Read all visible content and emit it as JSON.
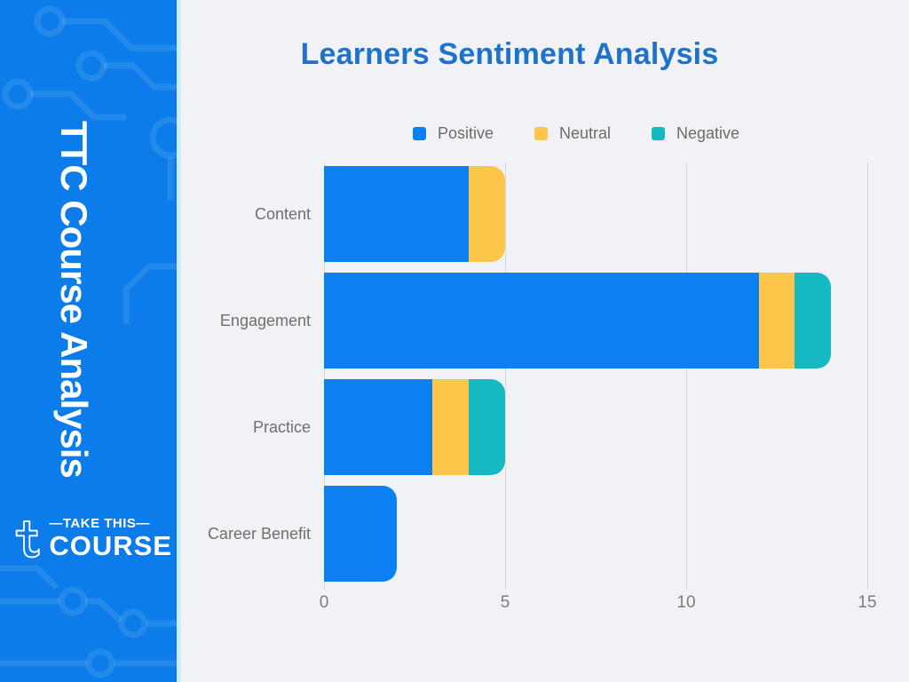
{
  "sidebar": {
    "vertical_title": "TTC Course Analysis",
    "background_color": "#0b7ce9",
    "logo": {
      "tagline": "—TAKE THIS—",
      "wordmark": "COURSE"
    }
  },
  "chart_data": {
    "type": "bar",
    "orientation": "horizontal",
    "stacked": true,
    "title": "Learners Sentiment Analysis",
    "title_color": "#1d72ce",
    "categories": [
      "Content",
      "Engagement",
      "Practice",
      "Career Benefit"
    ],
    "series": [
      {
        "name": "Positive",
        "color": "#0b80f2",
        "values": [
          4,
          12,
          3,
          2
        ]
      },
      {
        "name": "Neutral",
        "color": "#fdc64b",
        "values": [
          1,
          1,
          1,
          0
        ]
      },
      {
        "name": "Negative",
        "color": "#14b9c1",
        "values": [
          0,
          1,
          1,
          0
        ]
      }
    ],
    "xlim": [
      0,
      15
    ],
    "xticks": [
      "0",
      "5",
      "10",
      "15"
    ],
    "legend_position": "top",
    "grid": "vertical",
    "background_color": "#f1f2f6",
    "label_color": "#6f6f6f",
    "tick_color": "#7d7d7d"
  }
}
